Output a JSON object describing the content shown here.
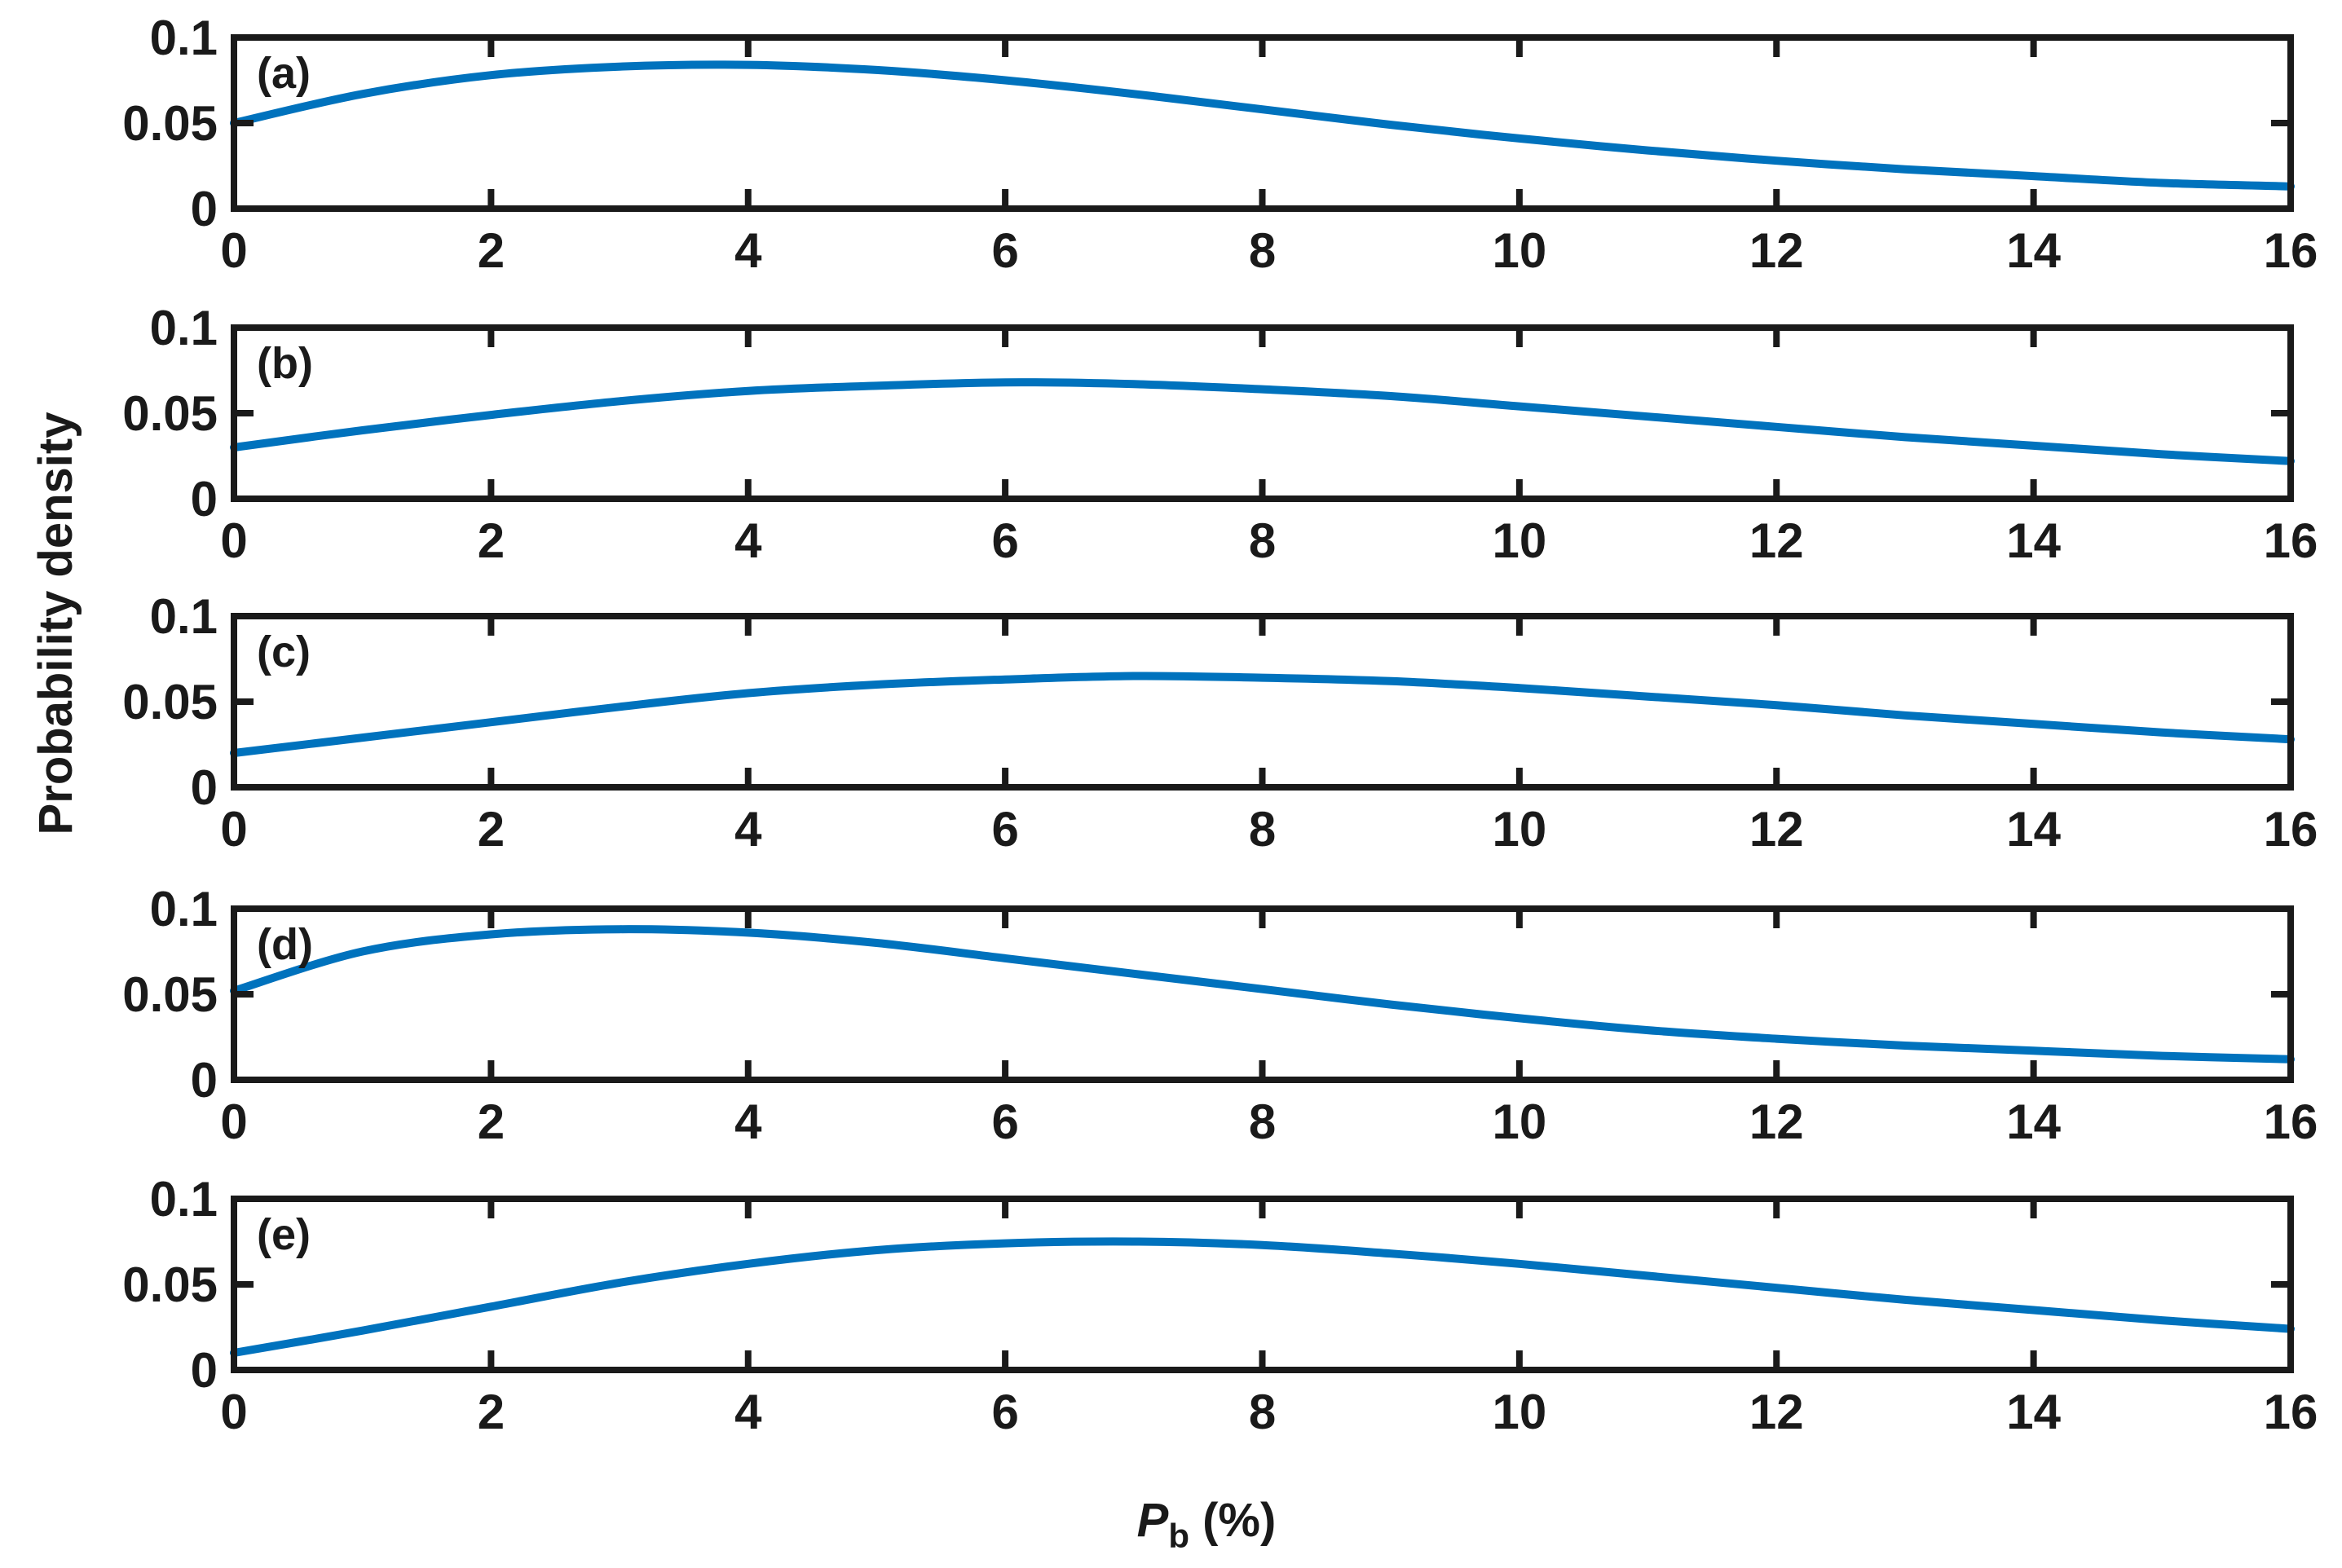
{
  "chart_data": {
    "type": "line",
    "ylabel": "Probability density",
    "xlabel_main": "P",
    "xlabel_sub": "b",
    "xlabel_unit": " (%)",
    "xlim": [
      0,
      16
    ],
    "ylim": [
      0,
      0.1
    ],
    "xticks": [
      0,
      2,
      4,
      6,
      8,
      10,
      12,
      14,
      16
    ],
    "xtick_labels": [
      "0",
      "2",
      "4",
      "6",
      "8",
      "10",
      "12",
      "14",
      "16"
    ],
    "yticks": [
      0,
      0.05,
      0.1
    ],
    "ytick_labels": [
      "0",
      "0.05",
      "0.1"
    ],
    "line_color": "#0072BD",
    "panels": [
      {
        "label": "(a)",
        "x": [
          0,
          1,
          2,
          3,
          4,
          5,
          6,
          7,
          8,
          9,
          10,
          11,
          12,
          13,
          14,
          15,
          16
        ],
        "y": [
          0.05,
          0.067,
          0.078,
          0.083,
          0.084,
          0.081,
          0.075,
          0.067,
          0.058,
          0.049,
          0.041,
          0.034,
          0.028,
          0.023,
          0.019,
          0.015,
          0.013
        ]
      },
      {
        "label": "(b)",
        "x": [
          0,
          1,
          2,
          3,
          4,
          5,
          6,
          7,
          8,
          9,
          10,
          11,
          12,
          13,
          14,
          15,
          16
        ],
        "y": [
          0.03,
          0.04,
          0.049,
          0.057,
          0.063,
          0.066,
          0.068,
          0.067,
          0.064,
          0.06,
          0.054,
          0.048,
          0.042,
          0.036,
          0.031,
          0.026,
          0.022
        ]
      },
      {
        "label": "(c)",
        "x": [
          0,
          1,
          2,
          3,
          4,
          5,
          6,
          7,
          8,
          9,
          10,
          11,
          12,
          13,
          14,
          15,
          16
        ],
        "y": [
          0.02,
          0.029,
          0.038,
          0.047,
          0.055,
          0.06,
          0.063,
          0.065,
          0.064,
          0.062,
          0.058,
          0.053,
          0.048,
          0.042,
          0.037,
          0.032,
          0.028
        ]
      },
      {
        "label": "(d)",
        "x": [
          0,
          1,
          2,
          3,
          4,
          5,
          6,
          7,
          8,
          9,
          10,
          11,
          12,
          13,
          14,
          15,
          16
        ],
        "y": [
          0.052,
          0.075,
          0.085,
          0.088,
          0.086,
          0.08,
          0.071,
          0.062,
          0.053,
          0.044,
          0.036,
          0.029,
          0.024,
          0.02,
          0.017,
          0.014,
          0.012
        ]
      },
      {
        "label": "(e)",
        "x": [
          0,
          1,
          2,
          3,
          4,
          5,
          6,
          7,
          8,
          9,
          10,
          11,
          12,
          13,
          14,
          15,
          16
        ],
        "y": [
          0.01,
          0.023,
          0.037,
          0.051,
          0.062,
          0.07,
          0.074,
          0.075,
          0.073,
          0.068,
          0.062,
          0.055,
          0.048,
          0.041,
          0.035,
          0.029,
          0.024
        ]
      }
    ]
  }
}
